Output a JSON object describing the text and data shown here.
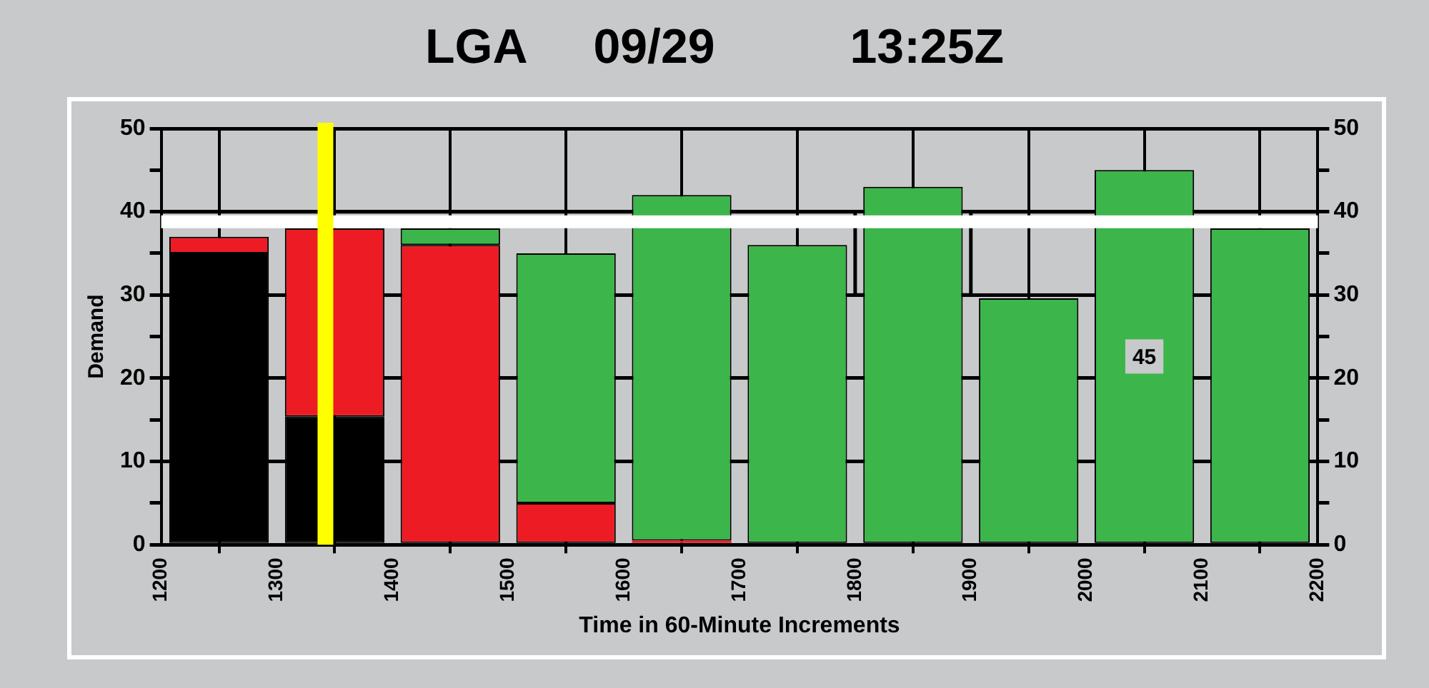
{
  "chart_data": {
    "type": "bar",
    "title": "LGA     09/29          13:25Z",
    "xlabel": "Time in 60-Minute Increments",
    "ylabel": "Demand",
    "x": [
      1250,
      1350,
      1450,
      1550,
      1650,
      1750,
      1850,
      1950,
      2050,
      2150
    ],
    "stacked": true,
    "series": [
      {
        "color": "#000000",
        "values": [
          35,
          15.4,
          null,
          null,
          null,
          null,
          null,
          null,
          null,
          null
        ]
      },
      {
        "color": "#ed1c24",
        "values": [
          2,
          22.6,
          36,
          5,
          0.5,
          null,
          null,
          null,
          null,
          null
        ]
      },
      {
        "color": "#3cb54a",
        "values": [
          null,
          null,
          2,
          30,
          41.5,
          36,
          43,
          29.6,
          45,
          38
        ],
        "value_labels": [
          null,
          null,
          null,
          null,
          null,
          null,
          null,
          null,
          "45",
          null
        ]
      },
      {
        "type": "step",
        "color": "#000000",
        "x": [
          1200,
          1300,
          1400,
          1500,
          1600,
          1700,
          1800,
          1900,
          2000,
          2100,
          2200
        ],
        "values": [
          40,
          40,
          40,
          40,
          40,
          40,
          40,
          30,
          40,
          40,
          40
        ]
      }
    ],
    "xlim": [
      1200,
      2200
    ],
    "xticks": [
      1200,
      1300,
      1400,
      1500,
      1600,
      1700,
      1800,
      1900,
      2000,
      2100,
      2200
    ],
    "ylim": [
      0,
      50
    ],
    "yticks": [
      0,
      {
        "value": 5,
        "label": null
      },
      10,
      {
        "value": 15,
        "label": null
      },
      20,
      {
        "value": 25,
        "label": null
      },
      30,
      {
        "value": 35,
        "label": null
      },
      40,
      {
        "value": 45,
        "label": null
      },
      50
    ],
    "y2lim": [
      0,
      50
    ],
    "y2ticks": [
      0,
      {
        "value": 5,
        "label": null
      },
      10,
      {
        "value": 15,
        "label": null
      },
      20,
      {
        "value": 25,
        "label": null
      },
      30,
      {
        "value": 35,
        "label": null
      },
      40,
      {
        "value": 45,
        "label": null
      },
      50
    ],
    "ref_lines": [
      {
        "axis": "y",
        "value": 38.8,
        "color": "#ffffff"
      },
      {
        "axis": "x",
        "value": 1342,
        "color": "#ffff00"
      }
    ],
    "grid": true,
    "legend": false
  }
}
